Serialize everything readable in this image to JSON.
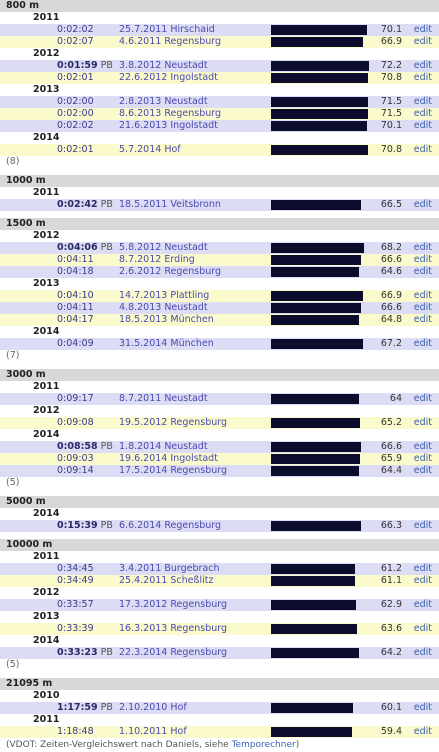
{
  "sections": [
    {
      "title": "800 m",
      "more": "(8)",
      "years": [
        {
          "year": "2011",
          "rows": [
            {
              "time": "0:02:02",
              "pb": "",
              "date": "25.7.2011 Hirschaid",
              "vdot": "70.1",
              "bar": 0.72
            },
            {
              "time": "0:02:07",
              "pb": "",
              "date": "4.6.2011 Regensburg",
              "vdot": "66.9",
              "bar": 0.69
            }
          ]
        },
        {
          "year": "2012",
          "rows": [
            {
              "time": "0:01:59",
              "pb": "PB",
              "date": "3.8.2012 Neustadt",
              "vdot": "72.2",
              "bar": 0.74
            },
            {
              "time": "0:02:01",
              "pb": "",
              "date": "22.6.2012 Ingolstadt",
              "vdot": "70.8",
              "bar": 0.73
            }
          ]
        },
        {
          "year": "2013",
          "rows": [
            {
              "time": "0:02:00",
              "pb": "",
              "date": "2.8.2013 Neustadt",
              "vdot": "71.5",
              "bar": 0.73
            },
            {
              "time": "0:02:00",
              "pb": "",
              "date": "8.6.2013 Regensburg",
              "vdot": "71.5",
              "bar": 0.73
            },
            {
              "time": "0:02:02",
              "pb": "",
              "date": "21.6.2013 Ingolstadt",
              "vdot": "70.1",
              "bar": 0.72
            }
          ]
        },
        {
          "year": "2014",
          "rows": [
            {
              "time": "0:02:01",
              "pb": "",
              "date": "5.7.2014 Hof",
              "vdot": "70.8",
              "bar": 0.73
            }
          ]
        }
      ]
    },
    {
      "title": "1000 m",
      "more": "",
      "years": [
        {
          "year": "2011",
          "rows": [
            {
              "time": "0:02:42",
              "pb": "PB",
              "date": "18.5.2011 Veitsbronn",
              "vdot": "66.5",
              "bar": 0.68
            }
          ]
        }
      ]
    },
    {
      "title": "1500 m",
      "more": "(7)",
      "years": [
        {
          "year": "2012",
          "rows": [
            {
              "time": "0:04:06",
              "pb": "PB",
              "date": "5.8.2012 Neustadt",
              "vdot": "68.2",
              "bar": 0.7
            },
            {
              "time": "0:04:11",
              "pb": "",
              "date": "8.7.2012 Erding",
              "vdot": "66.6",
              "bar": 0.68
            },
            {
              "time": "0:04:18",
              "pb": "",
              "date": "2.6.2012 Regensburg",
              "vdot": "64.6",
              "bar": 0.66
            }
          ]
        },
        {
          "year": "2013",
          "rows": [
            {
              "time": "0:04:10",
              "pb": "",
              "date": "14.7.2013 Plattling",
              "vdot": "66.9",
              "bar": 0.69
            },
            {
              "time": "0:04:11",
              "pb": "",
              "date": "4.8.2013 Neustadt",
              "vdot": "66.6",
              "bar": 0.68
            },
            {
              "time": "0:04:17",
              "pb": "",
              "date": "18.5.2013 München",
              "vdot": "64.8",
              "bar": 0.66
            }
          ]
        },
        {
          "year": "2014",
          "rows": [
            {
              "time": "0:04:09",
              "pb": "",
              "date": "31.5.2014 München",
              "vdot": "67.2",
              "bar": 0.69
            }
          ]
        }
      ]
    },
    {
      "title": "3000 m",
      "more": "(5)",
      "years": [
        {
          "year": "2011",
          "rows": [
            {
              "time": "0:09:17",
              "pb": "",
              "date": "8.7.2011 Neustadt",
              "vdot": "64",
              "bar": 0.66
            }
          ]
        },
        {
          "year": "2012",
          "rows": [
            {
              "time": "0:09:08",
              "pb": "",
              "date": "19.5.2012 Regensburg",
              "vdot": "65.2",
              "bar": 0.67
            }
          ]
        },
        {
          "year": "2014",
          "rows": [
            {
              "time": "0:08:58",
              "pb": "PB",
              "date": "1.8.2014 Neustadt",
              "vdot": "66.6",
              "bar": 0.68
            },
            {
              "time": "0:09:03",
              "pb": "",
              "date": "19.6.2014 Ingolstadt",
              "vdot": "65.9",
              "bar": 0.67
            },
            {
              "time": "0:09:14",
              "pb": "",
              "date": "17.5.2014 Regensburg",
              "vdot": "64.4",
              "bar": 0.66
            }
          ]
        }
      ]
    },
    {
      "title": "5000 m",
      "more": "",
      "years": [
        {
          "year": "2014",
          "rows": [
            {
              "time": "0:15:39",
              "pb": "PB",
              "date": "6.6.2014 Regensburg",
              "vdot": "66.3",
              "bar": 0.68
            }
          ]
        }
      ]
    },
    {
      "title": "10000 m",
      "more": "(5)",
      "years": [
        {
          "year": "2011",
          "rows": [
            {
              "time": "0:34:45",
              "pb": "",
              "date": "3.4.2011 Burgebrach",
              "vdot": "61.2",
              "bar": 0.63
            },
            {
              "time": "0:34:49",
              "pb": "",
              "date": "25.4.2011 Scheßlitz",
              "vdot": "61.1",
              "bar": 0.63
            }
          ]
        },
        {
          "year": "2012",
          "rows": [
            {
              "time": "0:33:57",
              "pb": "",
              "date": "17.3.2012 Regensburg",
              "vdot": "62.9",
              "bar": 0.64
            }
          ]
        },
        {
          "year": "2013",
          "rows": [
            {
              "time": "0:33:39",
              "pb": "",
              "date": "16.3.2013 Regensburg",
              "vdot": "63.6",
              "bar": 0.65
            }
          ]
        },
        {
          "year": "2014",
          "rows": [
            {
              "time": "0:33:23",
              "pb": "PB",
              "date": "22.3.2014 Regensburg",
              "vdot": "64.2",
              "bar": 0.66
            }
          ]
        }
      ]
    },
    {
      "title": "21095 m",
      "more": "",
      "years": [
        {
          "year": "2010",
          "rows": [
            {
              "time": "1:17:59",
              "pb": "PB",
              "date": "2.10.2010 Hof",
              "vdot": "60.1",
              "bar": 0.62
            }
          ]
        },
        {
          "year": "2011",
          "rows": [
            {
              "time": "1:18:48",
              "pb": "",
              "date": "1.10.2011 Hof",
              "vdot": "59.4",
              "bar": 0.61
            }
          ]
        }
      ]
    }
  ],
  "edit_label": "edit",
  "footer": {
    "text": "(VDOT: Zeiten-Vergleichswert nach Daniels, siehe ",
    "link": "Temporechner",
    "close": ")"
  },
  "colors": {
    "row_blue": "#dcdcf4",
    "row_yellow": "#fafacc",
    "bar": "#0c0c2c",
    "section_bg": "#d8d8d8"
  }
}
